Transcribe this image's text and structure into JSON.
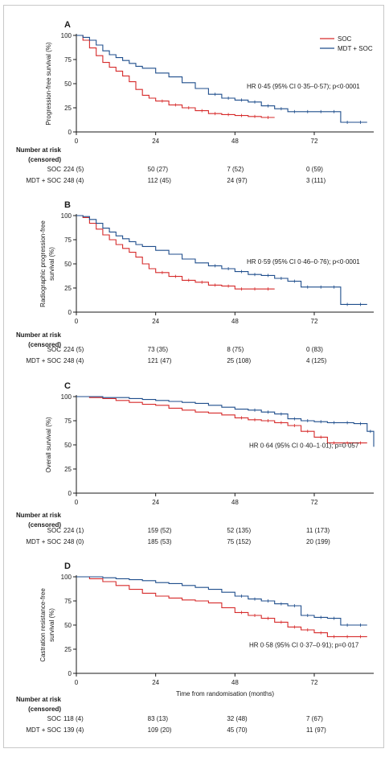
{
  "colors": {
    "soc": "#d62a2a",
    "mdt": "#1f4e8c",
    "axis": "#1a1a1a"
  },
  "risk_table_label": "Number at risk\n(censored)",
  "chart_data": [
    {
      "panel": "A",
      "type": "line",
      "ylabel": "Progression-free survival (%)",
      "xlabel": "",
      "xlim": [
        0,
        90
      ],
      "ylim": [
        0,
        100
      ],
      "xticks": [
        "0",
        "24",
        "48",
        "72"
      ],
      "yticks": [
        "0",
        "25",
        "50",
        "75",
        "100"
      ],
      "legend": {
        "placement": "top-right",
        "entries": [
          "SOC",
          "MDT + SOC"
        ]
      },
      "annotation": "HR 0·45 (95% CI 0·35–0·57); p<0·0001",
      "series": [
        {
          "name": "SOC",
          "color": "#d62a2a",
          "x": [
            0,
            2,
            4,
            6,
            8,
            10,
            12,
            14,
            16,
            18,
            20,
            22,
            24,
            28,
            32,
            36,
            40,
            44,
            48,
            52,
            56,
            60
          ],
          "y": [
            100,
            95,
            87,
            79,
            72,
            67,
            63,
            58,
            52,
            44,
            38,
            35,
            32,
            28,
            25,
            22,
            19,
            18,
            17,
            16,
            15,
            15
          ]
        },
        {
          "name": "MDT + SOC",
          "color": "#1f4e8c",
          "x": [
            0,
            2,
            4,
            6,
            8,
            10,
            12,
            14,
            16,
            18,
            20,
            24,
            28,
            32,
            36,
            40,
            44,
            48,
            52,
            56,
            60,
            64,
            68,
            72,
            76,
            80,
            84,
            88
          ],
          "y": [
            100,
            98,
            95,
            90,
            84,
            80,
            77,
            74,
            71,
            68,
            66,
            61,
            57,
            51,
            45,
            39,
            35,
            33,
            31,
            27,
            24,
            21,
            21,
            21,
            21,
            10,
            10,
            10
          ]
        }
      ],
      "at_risk": {
        "rows": [
          {
            "label": "SOC",
            "values": [
              "224 (5)",
              "50 (27)",
              "7 (52)",
              "0 (59)"
            ]
          },
          {
            "label": "MDT + SOC",
            "values": [
              "248 (4)",
              "112 (45)",
              "24 (97)",
              "3 (111)"
            ]
          }
        ]
      }
    },
    {
      "panel": "B",
      "type": "line",
      "ylabel": "Radiographic progression-free survival (%)",
      "xlabel": "",
      "xlim": [
        0,
        90
      ],
      "ylim": [
        0,
        100
      ],
      "xticks": [
        "0",
        "24",
        "48",
        "72"
      ],
      "yticks": [
        "0",
        "25",
        "50",
        "75",
        "100"
      ],
      "annotation": "HR 0·59 (95% CI 0·46–0·76); p<0·0001",
      "series": [
        {
          "name": "SOC",
          "color": "#d62a2a",
          "x": [
            0,
            2,
            4,
            6,
            8,
            10,
            12,
            14,
            16,
            18,
            20,
            22,
            24,
            28,
            32,
            36,
            40,
            44,
            48,
            52,
            56,
            60
          ],
          "y": [
            100,
            98,
            92,
            86,
            80,
            75,
            70,
            66,
            62,
            57,
            50,
            45,
            41,
            37,
            33,
            31,
            28,
            27,
            24,
            24,
            24,
            24
          ]
        },
        {
          "name": "MDT + SOC",
          "color": "#1f4e8c",
          "x": [
            0,
            2,
            4,
            6,
            8,
            10,
            12,
            14,
            16,
            18,
            20,
            24,
            28,
            32,
            36,
            40,
            44,
            48,
            52,
            56,
            60,
            64,
            68,
            72,
            76,
            80,
            84,
            88
          ],
          "y": [
            100,
            99,
            96,
            92,
            87,
            83,
            79,
            76,
            73,
            70,
            68,
            64,
            60,
            55,
            51,
            48,
            45,
            42,
            39,
            38,
            35,
            32,
            26,
            26,
            26,
            8,
            8,
            8
          ]
        }
      ],
      "at_risk": {
        "rows": [
          {
            "label": "SOC",
            "values": [
              "224 (5)",
              "73 (35)",
              "8 (75)",
              "0 (83)"
            ]
          },
          {
            "label": "MDT + SOC",
            "values": [
              "248 (4)",
              "121 (47)",
              "25 (108)",
              "4 (125)"
            ]
          }
        ]
      }
    },
    {
      "panel": "C",
      "type": "line",
      "ylabel": "Overall survival (%)",
      "xlabel": "",
      "xlim": [
        0,
        90
      ],
      "ylim": [
        0,
        100
      ],
      "xticks": [
        "0",
        "24",
        "48",
        "72"
      ],
      "yticks": [
        "0",
        "25",
        "50",
        "75",
        "100"
      ],
      "annotation": "HR 0·64 (95% CI 0·40–1·01); p=0·057",
      "series": [
        {
          "name": "SOC",
          "color": "#d62a2a",
          "x": [
            0,
            4,
            8,
            12,
            16,
            20,
            24,
            28,
            32,
            36,
            40,
            44,
            48,
            52,
            56,
            60,
            64,
            68,
            72,
            76,
            80,
            84,
            88
          ],
          "y": [
            100,
            99,
            98,
            96,
            94,
            92,
            91,
            88,
            86,
            84,
            83,
            81,
            78,
            76,
            75,
            73,
            70,
            64,
            58,
            52,
            52,
            52,
            52
          ]
        },
        {
          "name": "MDT + SOC",
          "color": "#1f4e8c",
          "x": [
            0,
            4,
            8,
            12,
            16,
            20,
            24,
            28,
            32,
            36,
            40,
            44,
            48,
            52,
            56,
            60,
            64,
            68,
            72,
            76,
            80,
            84,
            88,
            90
          ],
          "y": [
            100,
            100,
            99,
            99,
            98,
            97,
            96,
            95,
            94,
            93,
            91,
            89,
            87,
            86,
            84,
            82,
            77,
            75,
            74,
            73,
            73,
            72,
            64,
            48
          ]
        }
      ],
      "at_risk": {
        "rows": [
          {
            "label": "SOC",
            "values": [
              "224 (1)",
              "159 (52)",
              "52 (135)",
              "11 (173)"
            ]
          },
          {
            "label": "MDT + SOC",
            "values": [
              "248 (0)",
              "185 (53)",
              "75 (152)",
              "20 (199)"
            ]
          }
        ]
      }
    },
    {
      "panel": "D",
      "type": "line",
      "ylabel": "Castration resistance-free survival (%)",
      "xlabel": "Time from randomisation (months)",
      "xlim": [
        0,
        90
      ],
      "ylim": [
        0,
        100
      ],
      "xticks": [
        "0",
        "24",
        "48",
        "72"
      ],
      "yticks": [
        "0",
        "25",
        "50",
        "75",
        "100"
      ],
      "annotation": "HR 0·58 (95% CI 0·37–0·91); p=0·017",
      "series": [
        {
          "name": "SOC",
          "color": "#d62a2a",
          "x": [
            0,
            4,
            8,
            12,
            16,
            20,
            24,
            28,
            32,
            36,
            40,
            44,
            48,
            52,
            56,
            60,
            64,
            68,
            72,
            76,
            80,
            84,
            88
          ],
          "y": [
            100,
            98,
            95,
            91,
            87,
            83,
            80,
            78,
            76,
            75,
            73,
            68,
            63,
            60,
            57,
            53,
            48,
            45,
            42,
            38,
            38,
            38,
            38
          ]
        },
        {
          "name": "MDT + SOC",
          "color": "#1f4e8c",
          "x": [
            0,
            4,
            8,
            12,
            16,
            20,
            24,
            28,
            32,
            36,
            40,
            44,
            48,
            52,
            56,
            60,
            64,
            68,
            72,
            76,
            80,
            84,
            88
          ],
          "y": [
            100,
            100,
            99,
            98,
            97,
            96,
            94,
            93,
            91,
            89,
            87,
            84,
            80,
            77,
            75,
            72,
            70,
            60,
            58,
            57,
            50,
            50,
            50
          ]
        }
      ],
      "at_risk": {
        "rows": [
          {
            "label": "SOC",
            "values": [
              "118 (4)",
              "83 (13)",
              "32 (48)",
              "7 (67)"
            ]
          },
          {
            "label": "MDT + SOC",
            "values": [
              "139 (4)",
              "109 (20)",
              "45 (70)",
              "11 (97)"
            ]
          }
        ]
      }
    }
  ]
}
